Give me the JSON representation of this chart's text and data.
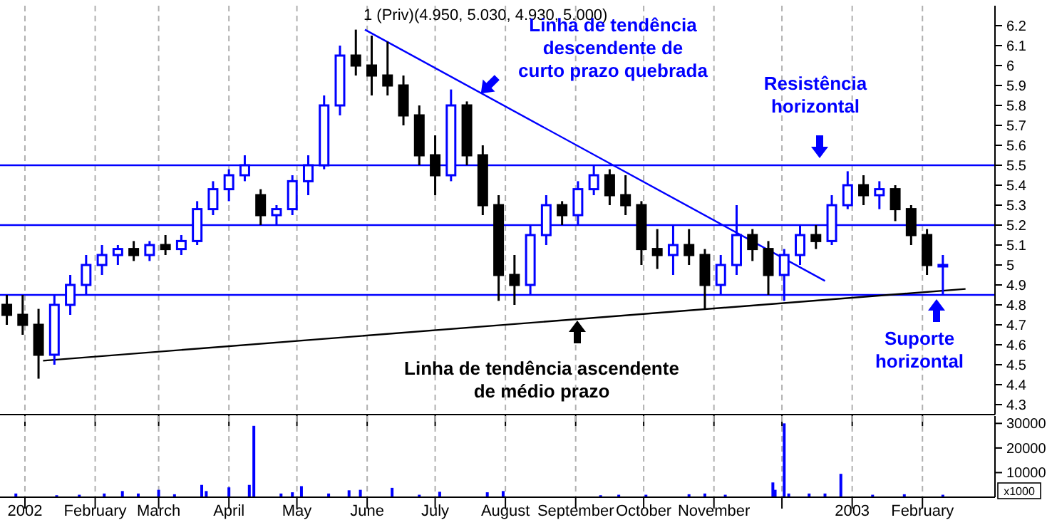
{
  "chart_data": [
    {
      "type": "candlestick",
      "title": "1 (Priv)(4.950, 5.030, 4.930, 5.000)",
      "x": [
        "2001-12-24",
        "2001-12-31",
        "2002-01-07",
        "2002-01-14",
        "2002-01-21",
        "2002-01-28",
        "2002-02-04",
        "2002-02-11",
        "2002-02-18",
        "2002-02-25",
        "2002-03-04",
        "2002-03-11",
        "2002-03-18",
        "2002-03-25",
        "2002-04-01",
        "2002-04-08",
        "2002-04-15",
        "2002-04-22",
        "2002-04-29",
        "2002-05-06",
        "2002-05-13",
        "2002-05-20",
        "2002-05-27",
        "2002-06-03",
        "2002-06-10",
        "2002-06-17",
        "2002-06-24",
        "2002-07-01",
        "2002-07-08",
        "2002-07-15",
        "2002-07-22",
        "2002-07-29",
        "2002-08-05",
        "2002-08-12",
        "2002-08-19",
        "2002-08-26",
        "2002-09-02",
        "2002-09-09",
        "2002-09-16",
        "2002-09-23",
        "2002-09-30",
        "2002-10-07",
        "2002-10-14",
        "2002-10-21",
        "2002-10-28",
        "2002-11-04",
        "2002-11-11",
        "2002-11-18",
        "2002-11-25",
        "2002-12-02",
        "2002-12-09",
        "2002-12-16",
        "2002-12-23",
        "2002-12-30",
        "2003-01-06",
        "2003-01-13",
        "2003-01-20",
        "2003-01-27",
        "2003-02-03",
        "2003-02-10"
      ],
      "ohlc": [
        [
          4.8,
          4.85,
          4.7,
          4.75
        ],
        [
          4.75,
          4.85,
          4.65,
          4.7
        ],
        [
          4.7,
          4.78,
          4.43,
          4.55
        ],
        [
          4.55,
          4.85,
          4.5,
          4.8
        ],
        [
          4.8,
          4.95,
          4.75,
          4.9
        ],
        [
          4.9,
          5.05,
          4.85,
          5.0
        ],
        [
          5.0,
          5.1,
          4.95,
          5.05
        ],
        [
          5.05,
          5.1,
          5.0,
          5.08
        ],
        [
          5.08,
          5.12,
          5.02,
          5.05
        ],
        [
          5.05,
          5.12,
          5.02,
          5.1
        ],
        [
          5.1,
          5.15,
          5.05,
          5.08
        ],
        [
          5.08,
          5.15,
          5.05,
          5.12
        ],
        [
          5.12,
          5.32,
          5.1,
          5.28
        ],
        [
          5.28,
          5.42,
          5.25,
          5.38
        ],
        [
          5.38,
          5.48,
          5.32,
          5.45
        ],
        [
          5.45,
          5.55,
          5.42,
          5.5
        ],
        [
          5.35,
          5.38,
          5.2,
          5.25
        ],
        [
          5.25,
          5.3,
          5.2,
          5.28
        ],
        [
          5.28,
          5.45,
          5.25,
          5.42
        ],
        [
          5.42,
          5.55,
          5.35,
          5.5
        ],
        [
          5.5,
          5.85,
          5.48,
          5.8
        ],
        [
          5.8,
          6.1,
          5.75,
          6.05
        ],
        [
          6.05,
          6.18,
          5.95,
          6.0
        ],
        [
          6.0,
          6.15,
          5.85,
          5.95
        ],
        [
          5.95,
          6.12,
          5.85,
          5.9
        ],
        [
          5.9,
          5.95,
          5.7,
          5.75
        ],
        [
          5.75,
          5.8,
          5.5,
          5.55
        ],
        [
          5.55,
          5.65,
          5.35,
          5.45
        ],
        [
          5.45,
          5.88,
          5.42,
          5.8
        ],
        [
          5.8,
          5.82,
          5.5,
          5.55
        ],
        [
          5.55,
          5.6,
          5.25,
          5.3
        ],
        [
          5.3,
          5.35,
          4.82,
          4.95
        ],
        [
          4.95,
          5.05,
          4.8,
          4.9
        ],
        [
          4.9,
          5.2,
          4.85,
          5.15
        ],
        [
          5.15,
          5.35,
          5.1,
          5.3
        ],
        [
          5.3,
          5.32,
          5.2,
          5.25
        ],
        [
          5.25,
          5.42,
          5.2,
          5.38
        ],
        [
          5.38,
          5.5,
          5.35,
          5.45
        ],
        [
          5.45,
          5.48,
          5.3,
          5.35
        ],
        [
          5.35,
          5.45,
          5.25,
          5.3
        ],
        [
          5.3,
          5.32,
          5.0,
          5.08
        ],
        [
          5.08,
          5.18,
          4.98,
          5.05
        ],
        [
          5.05,
          5.2,
          4.95,
          5.1
        ],
        [
          5.1,
          5.18,
          5.0,
          5.05
        ],
        [
          5.05,
          5.08,
          4.78,
          4.9
        ],
        [
          4.9,
          5.05,
          4.85,
          5.0
        ],
        [
          5.0,
          5.3,
          4.95,
          5.15
        ],
        [
          5.15,
          5.18,
          5.02,
          5.08
        ],
        [
          5.08,
          5.12,
          4.85,
          4.95
        ],
        [
          4.95,
          5.08,
          4.82,
          5.05
        ],
        [
          5.05,
          5.2,
          5.0,
          5.15
        ],
        [
          5.15,
          5.2,
          5.08,
          5.12
        ],
        [
          5.12,
          5.35,
          5.1,
          5.3
        ],
        [
          5.3,
          5.47,
          5.28,
          5.4
        ],
        [
          5.4,
          5.45,
          5.3,
          5.35
        ],
        [
          5.35,
          5.42,
          5.28,
          5.38
        ],
        [
          5.38,
          5.4,
          5.22,
          5.28
        ],
        [
          5.28,
          5.3,
          5.1,
          5.15
        ],
        [
          5.15,
          5.18,
          4.95,
          5.0
        ],
        [
          5.0,
          5.05,
          4.85,
          5.0
        ]
      ],
      "series": [
        {
          "type": "line",
          "color": "#0000ff",
          "x": [
            "2002-05-31",
            "2002-12-20"
          ],
          "values": [
            6.18,
            4.92
          ]
        },
        {
          "type": "line",
          "color": "#000000",
          "x": [
            "2002-01-09",
            "2003-02-20"
          ],
          "values": [
            4.52,
            4.88
          ]
        }
      ],
      "ref_lines": [
        {
          "axis": "y",
          "value": 5.5,
          "color": "#0000ff"
        },
        {
          "axis": "y",
          "value": 5.2,
          "color": "#0000ff"
        },
        {
          "axis": "y",
          "value": 4.85,
          "color": "#0000ff"
        }
      ],
      "annotations": [
        "Linha de tendência\ndescendente de\ncurto prazo quebrada",
        "Resistência\nhorizontal",
        "Linha de tendência ascendente\nde médio prazo",
        "Suporte\nhorizontal"
      ],
      "xlim": [
        "2001-12-21",
        "2003-03-05"
      ],
      "xticks": [
        {
          "value": "2002-01-01",
          "label": null
        },
        {
          "value": "2002-02-01",
          "label": null
        },
        {
          "value": "2002-03-01",
          "label": null
        },
        {
          "value": "2002-04-01",
          "label": null
        },
        {
          "value": "2002-05-01",
          "label": null
        },
        {
          "value": "2002-06-01",
          "label": null
        },
        {
          "value": "2002-07-01",
          "label": null
        },
        {
          "value": "2002-08-01",
          "label": null
        },
        {
          "value": "2002-09-01",
          "label": null
        },
        {
          "value": "2002-10-01",
          "label": null
        },
        {
          "value": "2002-11-01",
          "label": null
        },
        {
          "value": "2002-12-01",
          "label": null
        },
        {
          "value": "2003-01-01",
          "label": null
        },
        {
          "value": "2003-02-01",
          "label": null
        }
      ],
      "ylim": [
        4.25,
        6.3
      ],
      "yticks": [
        4.3,
        4.4,
        4.5,
        4.6,
        4.7,
        4.8,
        4.9,
        5.0,
        5.1,
        5.2,
        5.3,
        5.4,
        5.5,
        5.6,
        5.7,
        5.8,
        5.9,
        6.0,
        6.1,
        6.2
      ],
      "grid": "x",
      "legend": false,
      "tick_labels": "y"
    },
    {
      "type": "bar",
      "ylabel": "x1000",
      "color": "#0000ff",
      "x": [
        "2001-12-28",
        "2002-01-15",
        "2002-01-25",
        "2002-02-05",
        "2002-02-13",
        "2002-02-20",
        "2002-03-01",
        "2002-03-08",
        "2002-03-20",
        "2002-03-22",
        "2002-04-01",
        "2002-04-10",
        "2002-04-12",
        "2002-04-24",
        "2002-04-29",
        "2002-05-03",
        "2002-05-15",
        "2002-05-24",
        "2002-05-29",
        "2002-06-12",
        "2002-06-24",
        "2002-07-03",
        "2002-07-24",
        "2002-07-31",
        "2002-09-12",
        "2002-09-20",
        "2002-10-02",
        "2002-10-21",
        "2002-10-28",
        "2002-11-06",
        "2002-11-27",
        "2002-11-28",
        "2002-12-02",
        "2002-12-04",
        "2002-12-13",
        "2002-12-20",
        "2002-12-27",
        "2003-01-10",
        "2003-01-24",
        "2003-02-10"
      ],
      "values": [
        1500,
        800,
        1000,
        1500,
        2500,
        1500,
        3000,
        1200,
        5000,
        2500,
        4000,
        5000,
        29000,
        1500,
        2000,
        4500,
        1500,
        2800,
        3000,
        3800,
        1000,
        2200,
        2000,
        2500,
        800,
        1000,
        1000,
        1200,
        1500,
        1000,
        6000,
        3000,
        30000,
        1500,
        1500,
        1500,
        9500,
        1000,
        1200,
        1000
      ],
      "xlim": [
        "2001-12-21",
        "2003-03-05"
      ],
      "xticks": [
        {
          "value": "2002-01-01",
          "label": "2002"
        },
        {
          "value": "2002-02-01",
          "label": "February"
        },
        {
          "value": "2002-03-01",
          "label": "March"
        },
        {
          "value": "2002-04-01",
          "label": "April"
        },
        {
          "value": "2002-05-01",
          "label": "May"
        },
        {
          "value": "2002-06-01",
          "label": "June"
        },
        {
          "value": "2002-07-01",
          "label": "July"
        },
        {
          "value": "2002-08-01",
          "label": "August"
        },
        {
          "value": "2002-09-01",
          "label": "September"
        },
        {
          "value": "2002-10-01",
          "label": "October"
        },
        {
          "value": "2002-11-01",
          "label": "November"
        },
        {
          "value": "2002-12-01",
          "label": null
        },
        {
          "value": "2003-01-01",
          "label": "2003"
        },
        {
          "value": "2003-02-01",
          "label": "February"
        }
      ],
      "ylim": [
        0,
        33000
      ],
      "yticks": [
        10000,
        20000,
        30000
      ],
      "grid": "x",
      "legend": false
    }
  ]
}
